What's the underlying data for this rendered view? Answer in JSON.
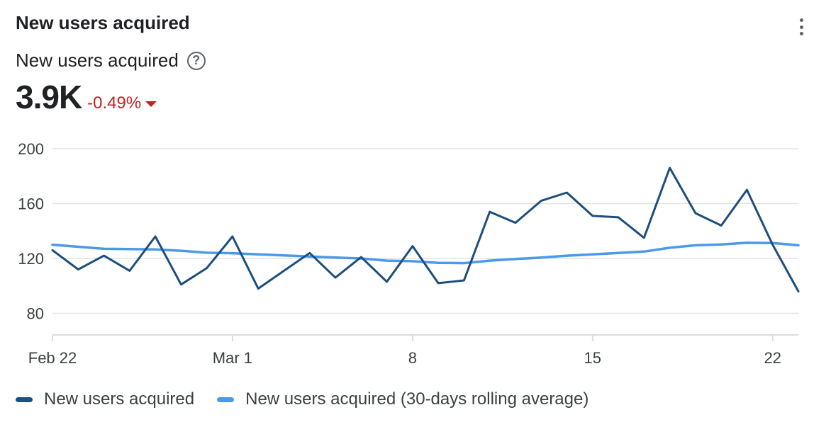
{
  "card": {
    "title": "New users acquired",
    "metric_name": "New users acquired",
    "help_symbol": "?",
    "value": "3.9K",
    "change": "-0.49%",
    "change_color": "#c5221f"
  },
  "colors": {
    "primary_series": "#1d4e7d",
    "rolling_series": "#4b9ae9",
    "grid": "#e3e3e3",
    "axis": "#dadce0"
  },
  "chart_data": {
    "type": "line",
    "title": "",
    "xlabel": "",
    "ylabel": "",
    "ylim": [
      60,
      200
    ],
    "yticks": [
      200,
      160,
      120,
      80
    ],
    "x": [
      "Feb 22",
      "Feb 23",
      "Feb 24",
      "Feb 25",
      "Feb 26",
      "Feb 27",
      "Feb 28",
      "Mar 1",
      "Mar 2",
      "Mar 3",
      "Mar 4",
      "Mar 5",
      "Mar 6",
      "Mar 7",
      "Mar 8",
      "Mar 9",
      "Mar 10",
      "Mar 11",
      "Mar 12",
      "Mar 13",
      "Mar 14",
      "Mar 15",
      "Mar 16",
      "Mar 17",
      "Mar 18",
      "Mar 19",
      "Mar 20",
      "Mar 21",
      "Mar 22",
      "Mar 23"
    ],
    "xtick_labels": [
      {
        "index": 0,
        "label": "Feb 22"
      },
      {
        "index": 7,
        "label": "Mar 1"
      },
      {
        "index": 14,
        "label": "8"
      },
      {
        "index": 21,
        "label": "15"
      },
      {
        "index": 28,
        "label": "22"
      }
    ],
    "series": [
      {
        "name": "New users acquired",
        "values": [
          126,
          112,
          122,
          111,
          136,
          101,
          113,
          136,
          98,
          111,
          124,
          106,
          121,
          103,
          129,
          102,
          104,
          154,
          146,
          162,
          168,
          151,
          150,
          135,
          186,
          153,
          144,
          170,
          130,
          96
        ]
      },
      {
        "name": "New users acquired (30-days rolling average)",
        "values": [
          130,
          128.5,
          127,
          126.8,
          126.6,
          125.6,
          124.2,
          123.8,
          123,
          122.2,
          121.4,
          120.6,
          120,
          118.4,
          118,
          116.8,
          116.6,
          118.4,
          119.6,
          120.6,
          122,
          123,
          124,
          125,
          127.8,
          129.6,
          130.2,
          131.4,
          131.2,
          129.6
        ]
      }
    ],
    "grid": true,
    "legend_position": "bottom-left"
  }
}
